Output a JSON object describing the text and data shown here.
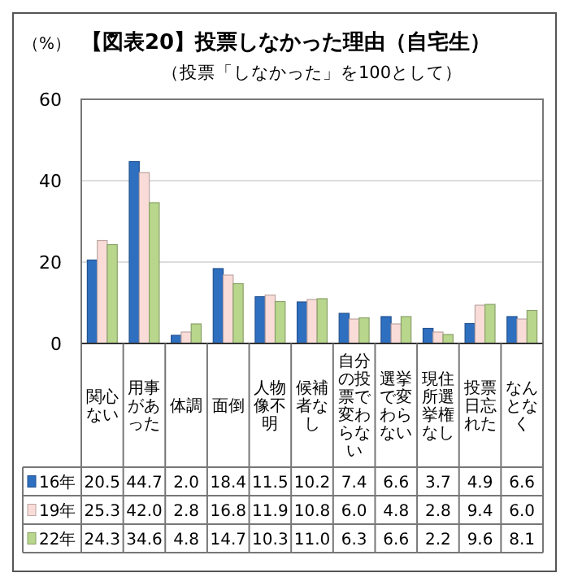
{
  "chart_data": {
    "type": "bar",
    "title": "【図表20】投票しなかった理由（自宅生）",
    "subtitle": "（投票「しなかった」を100として）",
    "ylabel": "（%）",
    "categories": [
      "関心ない",
      "用事があった",
      "体調",
      "面倒",
      "人物像不明",
      "候補者なし",
      "自分の投票で変わらない",
      "選挙で変わらない",
      "現住所選挙権なし",
      "投票日忘れた",
      "なんとなく"
    ],
    "series": [
      {
        "name": "16年",
        "color": "#2e6fc0",
        "values": [
          20.5,
          44.7,
          2.0,
          18.4,
          11.5,
          10.2,
          7.4,
          6.6,
          3.7,
          4.9,
          6.6
        ],
        "value_labels": [
          "20.5",
          "44.7",
          "2.0",
          "18.4",
          "11.5",
          "10.2",
          "7.4",
          "6.6",
          "3.7",
          "4.9",
          "6.6"
        ]
      },
      {
        "name": "19年",
        "color": "#f9dcd8",
        "values": [
          25.3,
          42.0,
          2.8,
          16.8,
          11.9,
          10.8,
          6.0,
          4.8,
          2.8,
          9.4,
          6.0
        ],
        "value_labels": [
          "25.3",
          "42.0",
          "2.8",
          "16.8",
          "11.9",
          "10.8",
          "6.0",
          "4.8",
          "2.8",
          "9.4",
          "6.0"
        ]
      },
      {
        "name": "22年",
        "color": "#b8d68c",
        "values": [
          24.3,
          34.6,
          4.8,
          14.7,
          10.3,
          11.0,
          6.3,
          6.6,
          2.2,
          9.6,
          8.1
        ],
        "value_labels": [
          "24.3",
          "34.6",
          "4.8",
          "14.7",
          "10.3",
          "11.0",
          "6.3",
          "6.6",
          "2.2",
          "9.6",
          "8.1"
        ]
      }
    ],
    "ylim": [
      0,
      60
    ],
    "yticks": [
      0,
      20,
      40,
      60
    ],
    "grid": "y",
    "legend": "bottom"
  }
}
